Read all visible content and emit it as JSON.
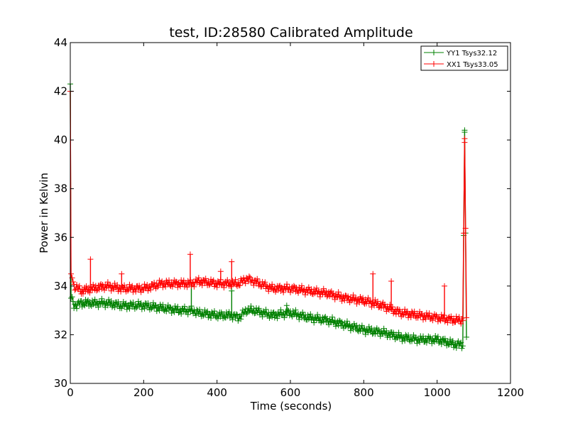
{
  "chart_data": {
    "type": "line",
    "title": "test, ID:28580 Calibrated Amplitude",
    "xlabel": "Time (seconds)",
    "ylabel": "Power in Kelvin",
    "xlim": [
      0,
      1200
    ],
    "ylim": [
      30,
      44
    ],
    "xticks": [
      0,
      200,
      400,
      600,
      800,
      1000,
      1200
    ],
    "yticks": [
      30,
      32,
      34,
      36,
      38,
      40,
      42,
      44
    ],
    "grid": false,
    "legend_position": "top-right",
    "marker": "plus",
    "series": [
      {
        "name": "YY1 Tsys32.12",
        "color": "#008000",
        "x": [
          0,
          2,
          5,
          10,
          30,
          60,
          100,
          140,
          200,
          250,
          300,
          330,
          350,
          400,
          440,
          460,
          480,
          500,
          550,
          600,
          650,
          700,
          750,
          800,
          850,
          900,
          950,
          1000,
          1050,
          1070,
          1075,
          1080
        ],
        "y": [
          42.3,
          33.5,
          33.4,
          33.2,
          33.3,
          33.3,
          33.3,
          33.2,
          33.2,
          33.1,
          33.0,
          33.0,
          32.9,
          32.8,
          32.8,
          32.7,
          33.0,
          33.0,
          32.8,
          32.9,
          32.7,
          32.6,
          32.4,
          32.2,
          32.1,
          31.9,
          31.8,
          31.8,
          31.6,
          31.6,
          40.4,
          31.9
        ],
        "spikes": [
          {
            "x": 330,
            "y": 34.0
          },
          {
            "x": 440,
            "y": 33.8
          },
          {
            "x": 590,
            "y": 33.2
          },
          {
            "x": 1075,
            "y": 40.4
          }
        ]
      },
      {
        "name": "XX1 Tsys33.05",
        "color": "#ff0000",
        "x": [
          0,
          2,
          5,
          10,
          30,
          60,
          100,
          140,
          200,
          250,
          300,
          330,
          350,
          400,
          440,
          460,
          480,
          500,
          550,
          600,
          650,
          700,
          750,
          800,
          850,
          900,
          950,
          1000,
          1050,
          1070,
          1075,
          1080
        ],
        "y": [
          42.0,
          34.5,
          34.4,
          34.0,
          33.8,
          33.9,
          34.0,
          33.9,
          33.9,
          34.1,
          34.1,
          34.1,
          34.2,
          34.1,
          34.1,
          34.1,
          34.3,
          34.2,
          33.9,
          33.9,
          33.8,
          33.7,
          33.5,
          33.4,
          33.2,
          32.9,
          32.8,
          32.7,
          32.6,
          32.6,
          39.9,
          32.7
        ],
        "spikes": [
          {
            "x": 55,
            "y": 35.1
          },
          {
            "x": 140,
            "y": 34.5
          },
          {
            "x": 327,
            "y": 35.3
          },
          {
            "x": 410,
            "y": 34.6
          },
          {
            "x": 440,
            "y": 35.0
          },
          {
            "x": 825,
            "y": 34.5
          },
          {
            "x": 875,
            "y": 34.2
          },
          {
            "x": 1020,
            "y": 34.0
          },
          {
            "x": 1075,
            "y": 39.9
          }
        ]
      }
    ]
  }
}
